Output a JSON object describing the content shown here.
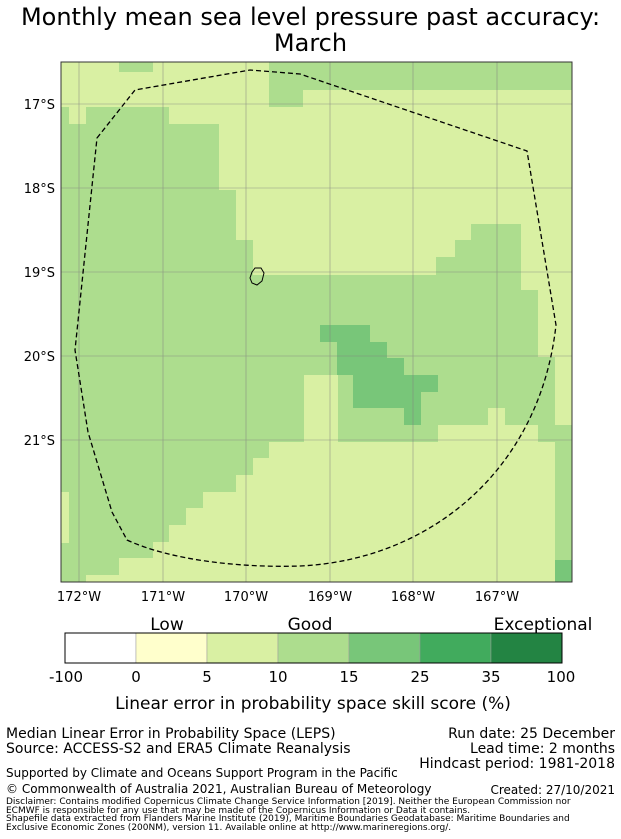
{
  "title": {
    "line1": "Monthly mean sea level pressure past accuracy:",
    "line2": "March"
  },
  "map": {
    "lat_labels": [
      "17°S",
      "18°S",
      "19°S",
      "20°S",
      "21°S"
    ],
    "lon_labels": [
      "172°W",
      "171°W",
      "170°W",
      "169°W",
      "168°W",
      "167°W"
    ],
    "extent": {
      "lon_min": -172.4,
      "lon_max": -166.25,
      "lat_min": -22.75,
      "lat_max": -16.5
    },
    "gridlines": true,
    "colors": {
      "border": "#333333",
      "gridline": "#808080",
      "eez_line": "#000000"
    }
  },
  "colorbar": {
    "category_labels": [
      "Low",
      "Good",
      "Exceptional"
    ],
    "ticks": [
      "-100",
      "0",
      "5",
      "10",
      "15",
      "25",
      "35",
      "100"
    ],
    "colors": [
      "#ffffff",
      "#ffffcc",
      "#d9f0a3",
      "#addd8e",
      "#78c679",
      "#41ab5d",
      "#238443"
    ],
    "label": "Linear error in probability space skill score (%)"
  },
  "footer": {
    "method": "Median Linear Error in Probability Space (LEPS)",
    "source": "Source: ACCESS-S2 and ERA5 Climate Reanalysis",
    "run_date": "Run date: 25 December",
    "lead_time": "Lead time: 2 months",
    "hindcast": "Hindcast period: 1981-2018",
    "supported": "Supported by Climate and Oceans Support Program in the Pacific",
    "copyright": "© Commonwealth of Australia 2021, Australian Bureau of Meteorology",
    "created": "Created: 27/10/2021",
    "disclaimer1": "Disclaimer: Contains modified Copernicus Climate Change Service Information [2019]. Neither the European Commission nor",
    "disclaimer2": "ECMWF is responsible for any use that may be made of the Copernicus Information or Data it contains.",
    "shapefile1": "Shapefile data extracted from Flanders Marine Institute (2019), Maritime Boundaries Geodatabase: Maritime Boundaries and",
    "shapefile2": "Exclusive Economic Zones (200NM), version 11. Available online at http://www.marineregions.org/."
  }
}
